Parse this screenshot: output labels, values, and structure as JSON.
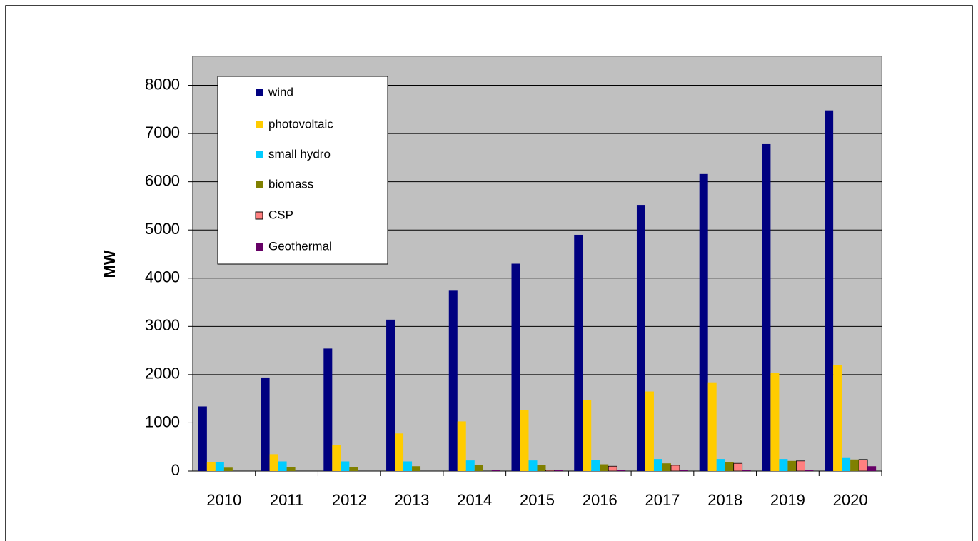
{
  "chart_data": {
    "type": "bar",
    "y_label": "MW",
    "categories": [
      "2010",
      "2011",
      "2012",
      "2013",
      "2014",
      "2015",
      "2016",
      "2017",
      "2018",
      "2019",
      "2020"
    ],
    "series": [
      {
        "name": "wind",
        "color": "#000080",
        "values": [
          1340,
          1940,
          2540,
          3140,
          3740,
          4300,
          4900,
          5520,
          6160,
          6780,
          7480
        ]
      },
      {
        "name": "photovoltaic",
        "color": "#ffcc00",
        "values": [
          180,
          350,
          540,
          780,
          1030,
          1270,
          1470,
          1650,
          1840,
          2030,
          2200
        ]
      },
      {
        "name": "small hydro",
        "color": "#00ccff",
        "values": [
          180,
          200,
          200,
          200,
          220,
          220,
          230,
          250,
          250,
          250,
          270
        ]
      },
      {
        "name": "biomass",
        "color": "#808000",
        "values": [
          70,
          80,
          80,
          100,
          120,
          120,
          140,
          160,
          180,
          210,
          240
        ]
      },
      {
        "name": "CSP",
        "color": "#ff8080",
        "values": [
          0,
          0,
          0,
          0,
          0,
          20,
          100,
          120,
          160,
          210,
          240
        ]
      },
      {
        "name": "Geothermal",
        "color": "#660066",
        "values": [
          0,
          0,
          0,
          0,
          20,
          20,
          20,
          20,
          20,
          20,
          100
        ]
      }
    ],
    "ylim": [
      0,
      8600
    ],
    "yticks": [
      0,
      1000,
      2000,
      3000,
      4000,
      5000,
      6000,
      7000,
      8000
    ],
    "grid": true
  }
}
